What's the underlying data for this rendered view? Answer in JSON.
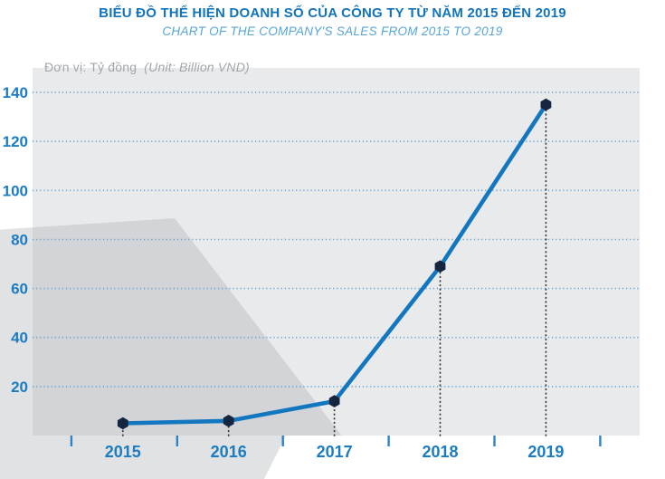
{
  "chart_data": {
    "type": "line",
    "title": "BIỂU ĐỒ THỂ HIỆN DOANH SỐ CỦA CÔNG TY TỪ NĂM 2015 ĐẾN 2019",
    "subtitle": "CHART OF THE COMPANY'S SALES FROM 2015 TO 2019",
    "unit_label_vi": "Đơn vị: Tỷ đồng",
    "unit_label_en": "(Unit: Billion VND)",
    "categories": [
      "2015",
      "2016",
      "2017",
      "2018",
      "2019"
    ],
    "values": [
      5,
      6,
      14,
      69,
      135
    ],
    "ylim": [
      0,
      150
    ],
    "yticks": [
      20,
      40,
      60,
      80,
      100,
      120,
      140
    ],
    "xlabel": "",
    "ylabel": "",
    "grid": "horizontal-dotted",
    "legend_position": "none",
    "marker_shape": "hexagon",
    "colors": {
      "title": "#1274ba",
      "subtitle": "#56a5d9",
      "unit_text": "#a2a6ab",
      "axis_labels": "#1c7cc2",
      "gridline": "#5a9dd4",
      "line": "#1377c0",
      "marker": "#16253f",
      "dropline": "#383d44",
      "tick": "#2e83c6",
      "plot_background": "#e9eaec",
      "overlay_shape": "rgba(164,167,172,0.33)",
      "page_background": "#ffffff"
    }
  }
}
